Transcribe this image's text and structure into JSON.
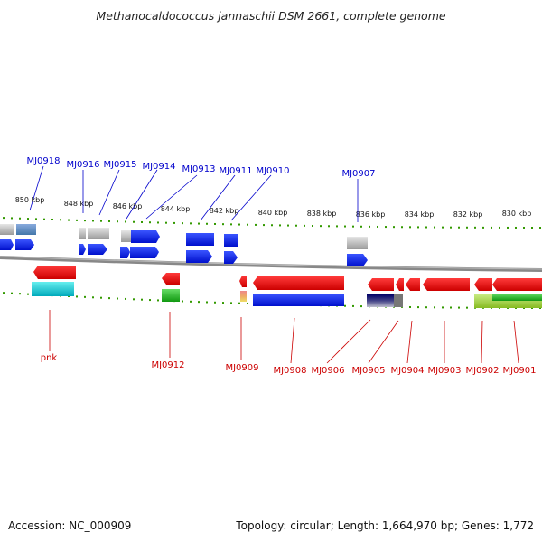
{
  "title": "Methanocaldococcus jannaschii DSM 2661, complete genome",
  "accession_label": "Accession:",
  "accession": "NC_000909",
  "topology_label": "Topology:",
  "topology": "circular",
  "length_label": "Length:",
  "length": "1,664,970 bp",
  "genes_label": "Genes:",
  "genes": "1,772",
  "ticks": [
    "850 kbp",
    "848 kbp",
    "846 kbp",
    "844 kbp",
    "842 kbp",
    "840 kbp",
    "838 kbp",
    "836 kbp",
    "834 kbp",
    "832 kbp",
    "830 kbp"
  ],
  "top_labels": [
    "MJ0918",
    "MJ0916",
    "MJ0915",
    "MJ0914",
    "MJ0913",
    "MJ0911",
    "MJ0910",
    "MJ0907"
  ],
  "bottom_labels": [
    "pnk",
    "MJ0912",
    "MJ0909",
    "MJ0908",
    "MJ0906",
    "MJ0905",
    "MJ0904",
    "MJ0903",
    "MJ0902",
    "MJ0901"
  ],
  "colors": {
    "forward_label": "#0000cc",
    "reverse_label": "#cc0000",
    "forward_gene": "#0022ee",
    "reverse_gene": "#ee0000",
    "tick": "#339900",
    "backbone": "#888888"
  }
}
